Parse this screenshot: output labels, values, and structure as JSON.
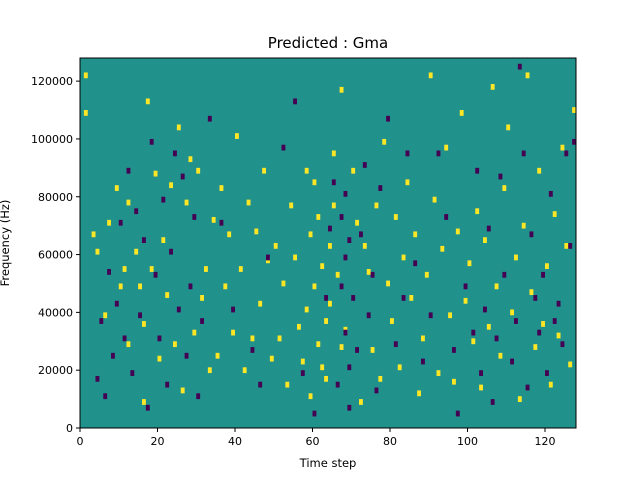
{
  "chart_data": {
    "type": "heatmap",
    "title": "Predicted : Gma",
    "xlabel": "Time step",
    "ylabel": "Frequency (Hz)",
    "xlim": [
      0,
      128
    ],
    "ylim": [
      0,
      128000
    ],
    "x_ticks": [
      "0",
      "20",
      "40",
      "60",
      "80",
      "100",
      "120"
    ],
    "y_ticks": [
      "0",
      "20000",
      "40000",
      "60000",
      "80000",
      "100000",
      "120000"
    ],
    "n_time_steps": 128,
    "n_freq_bins": 64,
    "colormap": "viridis",
    "colors": {
      "background": "#21918c",
      "high": "#fde725",
      "low": "#440154"
    },
    "grid": false,
    "legend": "none",
    "cells_high_yellow": [
      [
        1,
        121000
      ],
      [
        1,
        108000
      ],
      [
        3,
        66000
      ],
      [
        4,
        60000
      ],
      [
        6,
        38000
      ],
      [
        7,
        70000
      ],
      [
        9,
        82000
      ],
      [
        10,
        48000
      ],
      [
        11,
        54000
      ],
      [
        12,
        28000
      ],
      [
        12,
        77000
      ],
      [
        14,
        60000
      ],
      [
        15,
        48000
      ],
      [
        16,
        35000
      ],
      [
        16,
        8000
      ],
      [
        17,
        112000
      ],
      [
        18,
        54000
      ],
      [
        19,
        87000
      ],
      [
        20,
        23000
      ],
      [
        21,
        64000
      ],
      [
        22,
        45000
      ],
      [
        23,
        83000
      ],
      [
        24,
        28000
      ],
      [
        25,
        103000
      ],
      [
        26,
        12000
      ],
      [
        27,
        77000
      ],
      [
        28,
        92000
      ],
      [
        29,
        32000
      ],
      [
        30,
        88000
      ],
      [
        31,
        44000
      ],
      [
        32,
        54000
      ],
      [
        33,
        19000
      ],
      [
        34,
        71000
      ],
      [
        35,
        24000
      ],
      [
        36,
        82000
      ],
      [
        37,
        48000
      ],
      [
        38,
        66000
      ],
      [
        39,
        32000
      ],
      [
        40,
        100000
      ],
      [
        41,
        54000
      ],
      [
        42,
        19000
      ],
      [
        43,
        77000
      ],
      [
        44,
        30000
      ],
      [
        45,
        67000
      ],
      [
        46,
        42000
      ],
      [
        47,
        88000
      ],
      [
        48,
        57000
      ],
      [
        49,
        23000
      ],
      [
        50,
        62000
      ],
      [
        51,
        30000
      ],
      [
        52,
        49000
      ],
      [
        53,
        14000
      ],
      [
        54,
        76000
      ],
      [
        55,
        58000
      ],
      [
        56,
        34000
      ],
      [
        57,
        22000
      ],
      [
        58,
        88000
      ],
      [
        58,
        40000
      ],
      [
        59,
        66000
      ],
      [
        59,
        10000
      ],
      [
        60,
        84000
      ],
      [
        60,
        48000
      ],
      [
        61,
        28000
      ],
      [
        61,
        72000
      ],
      [
        62,
        55000
      ],
      [
        62,
        20000
      ],
      [
        63,
        36000
      ],
      [
        63,
        16000
      ],
      [
        64,
        62000
      ],
      [
        64,
        42000
      ],
      [
        65,
        76000
      ],
      [
        65,
        94000
      ],
      [
        66,
        52000
      ],
      [
        67,
        27000
      ],
      [
        67,
        116000
      ],
      [
        68,
        33000
      ],
      [
        70,
        88000
      ],
      [
        71,
        70000
      ],
      [
        72,
        8000
      ],
      [
        73,
        62000
      ],
      [
        74,
        53000
      ],
      [
        75,
        26000
      ],
      [
        76,
        76000
      ],
      [
        77,
        16000
      ],
      [
        78,
        98000
      ],
      [
        79,
        49000
      ],
      [
        80,
        36000
      ],
      [
        81,
        72000
      ],
      [
        82,
        20000
      ],
      [
        83,
        58000
      ],
      [
        84,
        84000
      ],
      [
        85,
        44000
      ],
      [
        86,
        66000
      ],
      [
        87,
        11000
      ],
      [
        88,
        30000
      ],
      [
        89,
        52000
      ],
      [
        90,
        121000
      ],
      [
        91,
        78000
      ],
      [
        92,
        18000
      ],
      [
        93,
        61000
      ],
      [
        94,
        96000
      ],
      [
        95,
        38000
      ],
      [
        96,
        15000
      ],
      [
        97,
        67000
      ],
      [
        98,
        108000
      ],
      [
        99,
        43000
      ],
      [
        100,
        56000
      ],
      [
        101,
        29000
      ],
      [
        102,
        74000
      ],
      [
        103,
        13000
      ],
      [
        104,
        64000
      ],
      [
        105,
        34000
      ],
      [
        106,
        117000
      ],
      [
        107,
        48000
      ],
      [
        108,
        24000
      ],
      [
        109,
        82000
      ],
      [
        110,
        103000
      ],
      [
        111,
        39000
      ],
      [
        112,
        58000
      ],
      [
        113,
        9000
      ],
      [
        114,
        69000
      ],
      [
        115,
        121000
      ],
      [
        116,
        46000
      ],
      [
        117,
        27000
      ],
      [
        118,
        88000
      ],
      [
        119,
        35000
      ],
      [
        120,
        55000
      ],
      [
        121,
        14000
      ],
      [
        122,
        73000
      ],
      [
        123,
        31000
      ],
      [
        124,
        96000
      ],
      [
        125,
        62000
      ],
      [
        126,
        21000
      ],
      [
        127,
        109000
      ]
    ],
    "cells_low_purple": [
      [
        4,
        16000
      ],
      [
        5,
        36000
      ],
      [
        6,
        10000
      ],
      [
        7,
        53000
      ],
      [
        8,
        24000
      ],
      [
        9,
        42000
      ],
      [
        10,
        70000
      ],
      [
        11,
        30000
      ],
      [
        12,
        88000
      ],
      [
        13,
        18000
      ],
      [
        14,
        74000
      ],
      [
        15,
        38000
      ],
      [
        16,
        64000
      ],
      [
        17,
        6000
      ],
      [
        18,
        98000
      ],
      [
        19,
        52000
      ],
      [
        20,
        30000
      ],
      [
        21,
        78000
      ],
      [
        22,
        14000
      ],
      [
        23,
        60000
      ],
      [
        24,
        94000
      ],
      [
        25,
        40000
      ],
      [
        26,
        86000
      ],
      [
        27,
        24000
      ],
      [
        28,
        48000
      ],
      [
        29,
        72000
      ],
      [
        30,
        10000
      ],
      [
        31,
        36000
      ],
      [
        33,
        106000
      ],
      [
        36,
        70000
      ],
      [
        39,
        40000
      ],
      [
        44,
        26000
      ],
      [
        46,
        14000
      ],
      [
        48,
        58000
      ],
      [
        52,
        96000
      ],
      [
        55,
        112000
      ],
      [
        57,
        18000
      ],
      [
        60,
        4000
      ],
      [
        63,
        44000
      ],
      [
        64,
        68000
      ],
      [
        65,
        84000
      ],
      [
        66,
        14000
      ],
      [
        67,
        48000
      ],
      [
        67,
        72000
      ],
      [
        68,
        32000
      ],
      [
        68,
        58000
      ],
      [
        68,
        80000
      ],
      [
        69,
        20000
      ],
      [
        69,
        64000
      ],
      [
        69,
        6000
      ],
      [
        70,
        44000
      ],
      [
        71,
        26000
      ],
      [
        72,
        66000
      ],
      [
        73,
        90000
      ],
      [
        74,
        38000
      ],
      [
        75,
        52000
      ],
      [
        76,
        12000
      ],
      [
        77,
        82000
      ],
      [
        79,
        106000
      ],
      [
        81,
        28000
      ],
      [
        83,
        44000
      ],
      [
        84,
        94000
      ],
      [
        86,
        56000
      ],
      [
        88,
        22000
      ],
      [
        90,
        38000
      ],
      [
        92,
        94000
      ],
      [
        94,
        72000
      ],
      [
        96,
        26000
      ],
      [
        97,
        4000
      ],
      [
        99,
        48000
      ],
      [
        101,
        32000
      ],
      [
        102,
        88000
      ],
      [
        103,
        18000
      ],
      [
        104,
        40000
      ],
      [
        105,
        68000
      ],
      [
        106,
        8000
      ],
      [
        107,
        30000
      ],
      [
        108,
        86000
      ],
      [
        109,
        52000
      ],
      [
        111,
        22000
      ],
      [
        112,
        36000
      ],
      [
        113,
        124000
      ],
      [
        114,
        94000
      ],
      [
        115,
        13000
      ],
      [
        116,
        66000
      ],
      [
        117,
        44000
      ],
      [
        118,
        32000
      ],
      [
        119,
        52000
      ],
      [
        120,
        18000
      ],
      [
        121,
        80000
      ],
      [
        122,
        36000
      ],
      [
        123,
        42000
      ],
      [
        124,
        28000
      ],
      [
        125,
        94000
      ],
      [
        126,
        62000
      ],
      [
        127,
        98000
      ]
    ]
  }
}
